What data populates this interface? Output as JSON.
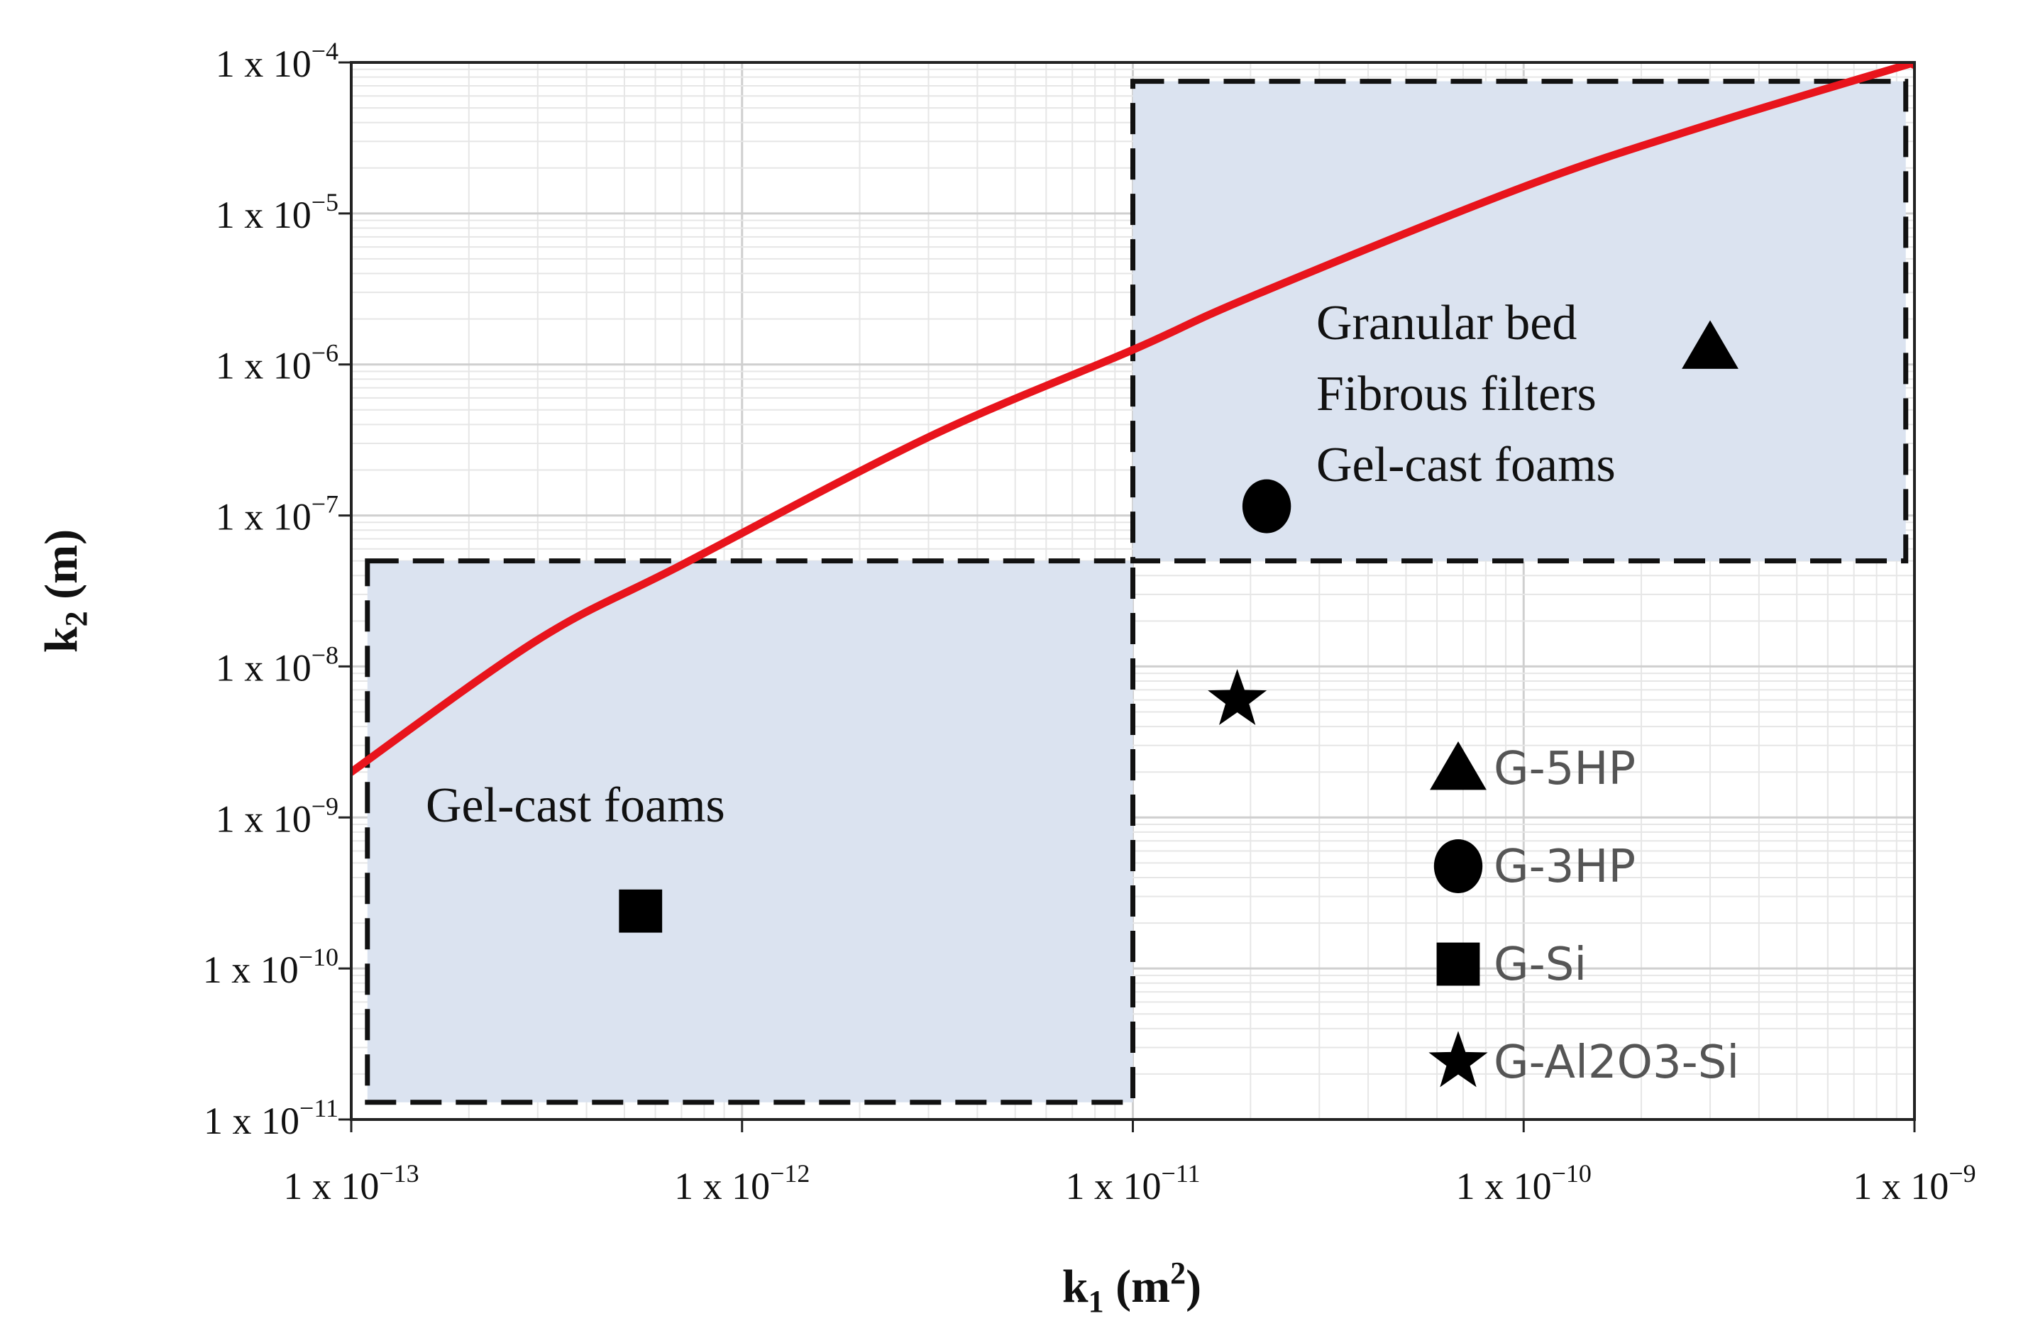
{
  "chart_data": {
    "type": "scatter",
    "title": "",
    "xlabel": "k1 (m2)",
    "ylabel": "k2 (m)",
    "x_scale": "log",
    "y_scale": "log",
    "xlim": [
      1e-13,
      1e-09
    ],
    "ylim": [
      1e-11,
      0.0001
    ],
    "grid": true,
    "x_tick_labels": [
      {
        "value": 1e-13,
        "mant": "1 x 10",
        "exp": "−13"
      },
      {
        "value": 1e-12,
        "mant": "1 x 10",
        "exp": "−12"
      },
      {
        "value": 1e-11,
        "mant": "1 x 10",
        "exp": "−11"
      },
      {
        "value": 1e-10,
        "mant": "1 x 10",
        "exp": "−10"
      },
      {
        "value": 1e-09,
        "mant": "1 x 10",
        "exp": "−9"
      }
    ],
    "y_tick_labels": [
      {
        "value": 0.0001,
        "mant": "1 x 10",
        "exp": "−4"
      },
      {
        "value": 1e-05,
        "mant": "1 x 10",
        "exp": "−5"
      },
      {
        "value": 1e-06,
        "mant": "1 x 10",
        "exp": "−6"
      },
      {
        "value": 1e-07,
        "mant": "1 x 10",
        "exp": "−7"
      },
      {
        "value": 1e-08,
        "mant": "1 x 10",
        "exp": "−8"
      },
      {
        "value": 1e-09,
        "mant": "1 x 10",
        "exp": "−9"
      },
      {
        "value": 1e-10,
        "mant": "1 x 10",
        "exp": "−10"
      },
      {
        "value": 1e-11,
        "mant": "1 x 10",
        "exp": "−11"
      }
    ],
    "curve": {
      "color": "#e8141c",
      "points": [
        [
          1e-13,
          2e-09
        ],
        [
          3e-13,
          1.5e-08
        ],
        [
          7e-13,
          4.7e-08
        ],
        [
          3e-12,
          3.3e-07
        ],
        [
          1e-11,
          1.25e-06
        ],
        [
          2e-11,
          2.8e-06
        ],
        [
          1e-10,
          1.5e-05
        ],
        [
          3e-10,
          3.9e-05
        ],
        [
          1e-09,
          0.0001
        ]
      ]
    },
    "regions": [
      {
        "x": [
          1.1e-13,
          1e-11
        ],
        "y": [
          1.3e-11,
          5e-08
        ],
        "labels": [
          "Gel-cast foams"
        ],
        "fill": "#dbe3f0"
      },
      {
        "x": [
          1e-11,
          9.5e-10
        ],
        "y": [
          5e-08,
          7.5e-05
        ],
        "labels": [
          "Granular bed",
          "Fibrous filters",
          "Gel-cast foams"
        ],
        "fill": "#dbe3f0"
      }
    ],
    "series": [
      {
        "name": "G-5HP",
        "marker": "triangle",
        "x": 3e-10,
        "y": 1.3e-06
      },
      {
        "name": "G-3HP",
        "marker": "circle",
        "x": 2.2e-11,
        "y": 1.15e-07
      },
      {
        "name": "G-Si",
        "marker": "square",
        "x": 5.5e-13,
        "y": 2.4e-10
      },
      {
        "name": "G-Al2O3-Si",
        "marker": "star",
        "x": 1.85e-11,
        "y": 6e-09
      }
    ],
    "legend_placement": "bottom-right"
  }
}
